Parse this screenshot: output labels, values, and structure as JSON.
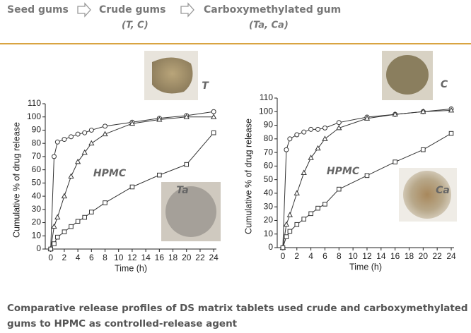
{
  "header": {
    "steps": [
      "Seed gums",
      "Crude gums",
      "Carboxymethylated gum"
    ],
    "notes": [
      "(T, C)",
      "(Ta, Ca)"
    ]
  },
  "caption": [
    "Comparative release profiles of DS matrix tablets used crude and carboxymethylated",
    "gums to HPMC as controlled-release agent"
  ],
  "chart_data": [
    {
      "type": "line",
      "x_label": "Time (h)",
      "y_label": "Cumulative % of drug release",
      "x": [
        0,
        0.5,
        1,
        2,
        3,
        4,
        5,
        6,
        8,
        12,
        16,
        20,
        24
      ],
      "series": [
        {
          "name": "T",
          "color": "#333333",
          "marker": "circle",
          "values": [
            0,
            70,
            81,
            83,
            85,
            87,
            88,
            90,
            93,
            96,
            99,
            101,
            104
          ]
        },
        {
          "name": "HPMC",
          "color": "#333333",
          "marker": "triangle",
          "values": [
            0,
            17,
            24,
            40,
            55,
            66,
            73,
            80,
            87,
            95,
            98,
            100,
            100
          ]
        },
        {
          "name": "Ta",
          "color": "#333333",
          "marker": "square",
          "values": [
            0,
            4,
            9,
            13,
            17,
            21,
            24,
            28,
            35,
            47,
            56,
            64,
            88
          ]
        }
      ],
      "xlim": [
        -0.8,
        24.4
      ],
      "xticks": [
        0,
        2,
        4,
        6,
        8,
        10,
        12,
        14,
        16,
        18,
        20,
        22,
        24
      ],
      "ylim": [
        0,
        110
      ],
      "yticks": [
        0,
        10,
        20,
        30,
        40,
        50,
        60,
        70,
        80,
        90,
        100,
        110
      ]
    },
    {
      "type": "line",
      "x_label": "Time (h)",
      "y_label": "Cumulative % of drug release",
      "x": [
        0,
        0.5,
        1,
        2,
        3,
        4,
        5,
        6,
        8,
        12,
        16,
        20,
        24
      ],
      "series": [
        {
          "name": "C",
          "color": "#333333",
          "marker": "circle",
          "values": [
            0,
            72,
            80,
            83,
            85,
            87,
            87,
            88,
            92,
            96,
            98,
            100,
            102
          ]
        },
        {
          "name": "HPMC",
          "color": "#333333",
          "marker": "triangle",
          "values": [
            0,
            17,
            24,
            40,
            55,
            66,
            73,
            80,
            88,
            95,
            98,
            100,
            101
          ]
        },
        {
          "name": "Ca",
          "color": "#333333",
          "marker": "square",
          "values": [
            0,
            8,
            12,
            17,
            21,
            25,
            29,
            32,
            43,
            53,
            63,
            72,
            84
          ]
        }
      ],
      "xlim": [
        -0.8,
        24.4
      ],
      "xticks": [
        0,
        2,
        4,
        6,
        8,
        10,
        12,
        14,
        16,
        18,
        20,
        22,
        24
      ],
      "ylim": [
        0,
        110
      ],
      "yticks": [
        0,
        10,
        20,
        30,
        40,
        50,
        60,
        70,
        80,
        90,
        100,
        110
      ]
    }
  ]
}
